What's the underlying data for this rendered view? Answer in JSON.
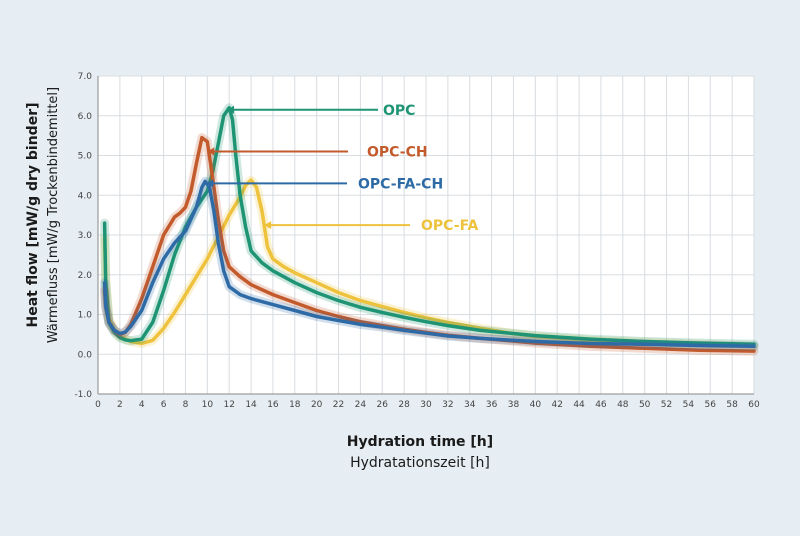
{
  "chart_data": {
    "type": "line",
    "title": "",
    "ylabel": "Heat flow [mW/g dry binder]",
    "ylabel_secondary": "Wärmefluss [mW/g Trockenbindemittel]",
    "xlabel": "Hydration time [h]",
    "xlabel_secondary": "Hydratationszeit [h]",
    "xlim": [
      0,
      60
    ],
    "ylim": [
      -1,
      7
    ],
    "x_ticks": [
      0,
      2,
      4,
      6,
      8,
      10,
      12,
      14,
      16,
      18,
      20,
      22,
      24,
      26,
      28,
      30,
      32,
      34,
      36,
      38,
      40,
      42,
      44,
      46,
      48,
      50,
      52,
      54,
      56,
      58,
      60
    ],
    "y_ticks": [
      -1,
      0,
      1,
      2,
      3,
      4,
      5,
      6,
      7
    ],
    "y_tick_labels": [
      "-1.0",
      "0.0",
      "1.0",
      "2.0",
      "3.0",
      "4.0",
      "5.0",
      "6.0",
      "7.0"
    ],
    "grid": true,
    "series": [
      {
        "name": "OPC-FA",
        "color": "#eec23c",
        "x": [
          0.6,
          0.7,
          1.0,
          1.5,
          2,
          3,
          4,
          5,
          6,
          7,
          8,
          9,
          10,
          11,
          12,
          13,
          13.5,
          14,
          14.5,
          15,
          15.5,
          16,
          17,
          18,
          20,
          22,
          24,
          26,
          28,
          30,
          32,
          35,
          38,
          40,
          45,
          50,
          55,
          60
        ],
        "y": [
          2.9,
          1.9,
          0.9,
          0.6,
          0.45,
          0.32,
          0.27,
          0.35,
          0.65,
          1.05,
          1.5,
          1.95,
          2.4,
          2.95,
          3.5,
          3.95,
          4.25,
          4.38,
          4.2,
          3.6,
          2.7,
          2.4,
          2.2,
          2.05,
          1.8,
          1.55,
          1.35,
          1.2,
          1.05,
          0.92,
          0.8,
          0.65,
          0.52,
          0.45,
          0.35,
          0.3,
          0.25,
          0.2
        ]
      },
      {
        "name": "OPC",
        "color": "#1e9474",
        "x": [
          0.6,
          0.7,
          1.0,
          1.5,
          2,
          2.5,
          3,
          4,
          5,
          6,
          7,
          8,
          9,
          10,
          10.5,
          11,
          11.5,
          12,
          12.3,
          12.6,
          13,
          13.5,
          14,
          15,
          16,
          18,
          20,
          22,
          24,
          26,
          28,
          30,
          32,
          35,
          40,
          45,
          50,
          55,
          60
        ],
        "y": [
          3.3,
          1.8,
          0.8,
          0.55,
          0.42,
          0.36,
          0.34,
          0.38,
          0.8,
          1.6,
          2.5,
          3.2,
          3.7,
          4.1,
          4.6,
          5.3,
          6.0,
          6.2,
          5.9,
          5.0,
          4.0,
          3.2,
          2.6,
          2.3,
          2.1,
          1.8,
          1.55,
          1.35,
          1.18,
          1.05,
          0.93,
          0.82,
          0.72,
          0.6,
          0.47,
          0.38,
          0.32,
          0.28,
          0.25
        ]
      },
      {
        "name": "OPC-CH",
        "color": "#c35a2c",
        "x": [
          0.6,
          0.7,
          1.0,
          1.5,
          2,
          2.5,
          3,
          4,
          5,
          6,
          7,
          7.5,
          8,
          8.5,
          9,
          9.5,
          10,
          10.5,
          11,
          11.5,
          12,
          13,
          14,
          16,
          18,
          20,
          22,
          24,
          26,
          28,
          30,
          32,
          35,
          38,
          40,
          45,
          50,
          55,
          60
        ],
        "y": [
          1.6,
          1.2,
          0.8,
          0.6,
          0.5,
          0.55,
          0.75,
          1.4,
          2.2,
          3.0,
          3.45,
          3.55,
          3.7,
          4.1,
          4.8,
          5.45,
          5.35,
          4.4,
          3.4,
          2.6,
          2.2,
          1.95,
          1.75,
          1.5,
          1.3,
          1.1,
          0.95,
          0.82,
          0.72,
          0.63,
          0.55,
          0.48,
          0.4,
          0.33,
          0.28,
          0.2,
          0.15,
          0.1,
          0.08
        ]
      },
      {
        "name": "OPC-FA-CH",
        "color": "#2e6ba6",
        "x": [
          0.6,
          0.7,
          1.0,
          1.5,
          2,
          2.5,
          3,
          4,
          5,
          6,
          7,
          8,
          9,
          9.5,
          9.8,
          10.2,
          10.6,
          11,
          11.5,
          12,
          13,
          14,
          16,
          18,
          20,
          22,
          24,
          26,
          28,
          30,
          32,
          35,
          38,
          40,
          45,
          50,
          55,
          60
        ],
        "y": [
          1.8,
          1.2,
          0.8,
          0.6,
          0.52,
          0.56,
          0.7,
          1.1,
          1.8,
          2.4,
          2.8,
          3.1,
          3.7,
          4.2,
          4.35,
          4.2,
          3.6,
          2.8,
          2.1,
          1.7,
          1.5,
          1.4,
          1.25,
          1.1,
          0.95,
          0.85,
          0.75,
          0.68,
          0.6,
          0.53,
          0.46,
          0.4,
          0.35,
          0.32,
          0.27,
          0.25,
          0.22,
          0.2
        ]
      }
    ],
    "callouts": [
      {
        "label": "OPC",
        "series": "OPC",
        "x": 11.8,
        "y": 6.15
      },
      {
        "label": "OPC-CH",
        "series": "OPC-CH",
        "x": 10.0,
        "y": 5.1
      },
      {
        "label": "OPC-FA-CH",
        "series": "OPC-FA-CH",
        "x": 9.9,
        "y": 4.3
      },
      {
        "label": "OPC-FA",
        "series": "OPC-FA",
        "x": 15.2,
        "y": 3.25
      }
    ]
  }
}
